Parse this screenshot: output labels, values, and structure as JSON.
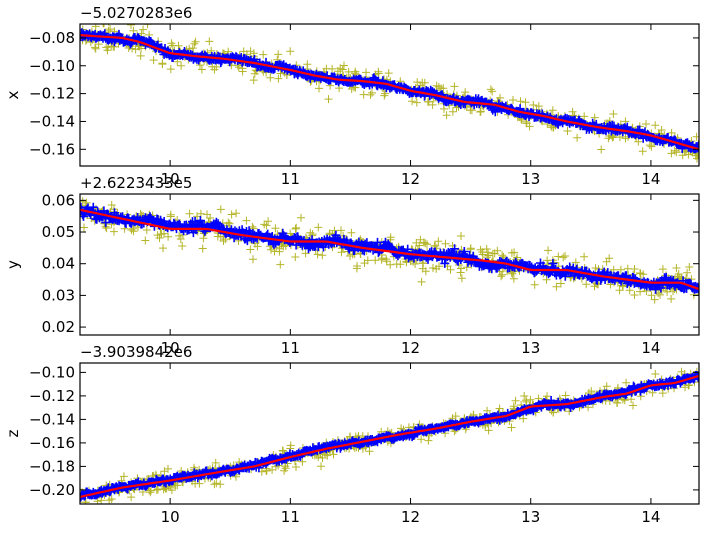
{
  "figure": {
    "background": "#ffffff"
  },
  "colors": {
    "raw": "#b5b52a",
    "filtered": "#0000ff",
    "smooth": "#ff0000",
    "axes": "#000000"
  },
  "chart_data": [
    {
      "type": "scatter",
      "name": "x-panel",
      "ylabel": "x",
      "offset_text": "−5.0270283e6",
      "xlim": [
        9.25,
        14.4
      ],
      "ylim": [
        -0.172,
        -0.07
      ],
      "xticks": [
        10,
        11,
        12,
        13,
        14
      ],
      "xtick_labels": [
        "10",
        "11",
        "12",
        "13",
        "14"
      ],
      "yticks": [
        -0.16,
        -0.14,
        -0.12,
        -0.1,
        -0.08
      ],
      "ytick_labels": [
        "−0.16",
        "−0.14",
        "−0.12",
        "−0.10",
        "−0.08"
      ],
      "trend": {
        "x": [
          9.25,
          9.6,
          9.75,
          10.0,
          10.2,
          10.45,
          10.7,
          11.0,
          11.2,
          11.4,
          11.6,
          11.8,
          12.0,
          12.2,
          12.45,
          12.7,
          12.9,
          13.1,
          13.3,
          13.55,
          13.8,
          14.0,
          14.2,
          14.4
        ],
        "y": [
          -0.078,
          -0.08,
          -0.083,
          -0.091,
          -0.093,
          -0.095,
          -0.098,
          -0.103,
          -0.107,
          -0.11,
          -0.111,
          -0.113,
          -0.118,
          -0.121,
          -0.126,
          -0.128,
          -0.133,
          -0.136,
          -0.14,
          -0.144,
          -0.147,
          -0.15,
          -0.155,
          -0.16
        ]
      },
      "noise": {
        "raw": 0.0045,
        "filtered": 0.0018
      },
      "series": [
        {
          "marker": "+",
          "role": "raw",
          "color": "#b5b52a",
          "count": 520
        },
        {
          "marker": "+",
          "role": "filtered",
          "color": "#0000ff",
          "count": 700
        },
        {
          "marker": "line",
          "role": "smooth",
          "color": "#ff0000"
        }
      ],
      "grid": false
    },
    {
      "type": "scatter",
      "name": "y-panel",
      "ylabel": "y",
      "offset_text": "+2.6223433e5",
      "xlim": [
        9.25,
        14.4
      ],
      "ylim": [
        0.0175,
        0.062
      ],
      "xticks": [
        10,
        11,
        12,
        13,
        14
      ],
      "xtick_labels": [
        "10",
        "11",
        "12",
        "13",
        "14"
      ],
      "yticks": [
        0.02,
        0.03,
        0.04,
        0.05,
        0.06
      ],
      "ytick_labels": [
        "0.02",
        "0.03",
        "0.04",
        "0.05",
        "0.06"
      ],
      "trend": {
        "x": [
          9.25,
          9.5,
          9.75,
          10.0,
          10.3,
          10.6,
          11.0,
          11.3,
          11.6,
          12.0,
          12.3,
          12.6,
          12.8,
          13.0,
          13.3,
          13.6,
          14.0,
          14.25,
          14.4
        ],
        "y": [
          0.057,
          0.055,
          0.053,
          0.051,
          0.051,
          0.049,
          0.047,
          0.047,
          0.045,
          0.043,
          0.042,
          0.041,
          0.04,
          0.038,
          0.038,
          0.036,
          0.034,
          0.034,
          0.032
        ]
      },
      "noise": {
        "raw": 0.0028,
        "filtered": 0.0011
      },
      "series": [
        {
          "marker": "+",
          "role": "raw",
          "color": "#b5b52a",
          "count": 520
        },
        {
          "marker": "+",
          "role": "filtered",
          "color": "#0000ff",
          "count": 700
        },
        {
          "marker": "line",
          "role": "smooth",
          "color": "#ff0000"
        }
      ],
      "grid": false
    },
    {
      "type": "scatter",
      "name": "z-panel",
      "ylabel": "z",
      "offset_text": "−3.9039842e6",
      "xlim": [
        9.25,
        14.4
      ],
      "ylim": [
        -0.212,
        -0.092
      ],
      "xticks": [
        10,
        11,
        12,
        13,
        14
      ],
      "xtick_labels": [
        "10",
        "11",
        "12",
        "13",
        "14"
      ],
      "yticks": [
        -0.2,
        -0.18,
        -0.16,
        -0.14,
        -0.12,
        -0.1
      ],
      "ytick_labels": [
        "−0.20",
        "−0.18",
        "−0.16",
        "−0.14",
        "−0.12",
        "−0.10"
      ],
      "trend": {
        "x": [
          9.25,
          9.6,
          10.0,
          10.4,
          10.7,
          11.0,
          11.3,
          11.6,
          11.9,
          12.2,
          12.5,
          12.8,
          13.0,
          13.3,
          13.6,
          13.8,
          14.0,
          14.2,
          14.4
        ],
        "y": [
          -0.206,
          -0.198,
          -0.192,
          -0.185,
          -0.18,
          -0.172,
          -0.165,
          -0.159,
          -0.153,
          -0.148,
          -0.142,
          -0.137,
          -0.129,
          -0.127,
          -0.121,
          -0.118,
          -0.111,
          -0.109,
          -0.103
        ]
      },
      "noise": {
        "raw": 0.0042,
        "filtered": 0.0016
      },
      "series": [
        {
          "marker": "+",
          "role": "raw",
          "color": "#b5b52a",
          "count": 520
        },
        {
          "marker": "+",
          "role": "filtered",
          "color": "#0000ff",
          "count": 700
        },
        {
          "marker": "line",
          "role": "smooth",
          "color": "#ff0000"
        }
      ],
      "grid": false
    }
  ]
}
